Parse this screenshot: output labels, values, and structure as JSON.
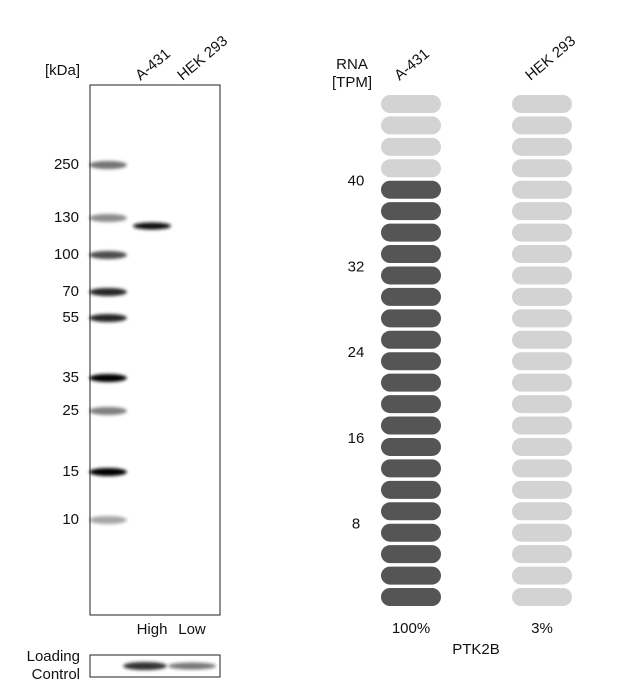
{
  "blot": {
    "unit_label": "[kDa]",
    "lanes": [
      "A-431",
      "HEK 293"
    ],
    "markers": [
      "250",
      "130",
      "100",
      "70",
      "55",
      "35",
      "25",
      "15",
      "10"
    ],
    "levels": [
      "High",
      "Low"
    ],
    "loading_control": "Loading Control"
  },
  "rna": {
    "axis_title": "RNA [TPM]",
    "samples": [
      "A-431",
      "HEK 293"
    ],
    "ticks": [
      "40",
      "32",
      "24",
      "16",
      "8"
    ],
    "percentages": [
      "100%",
      "3%"
    ],
    "gene": "PTK2B"
  }
}
